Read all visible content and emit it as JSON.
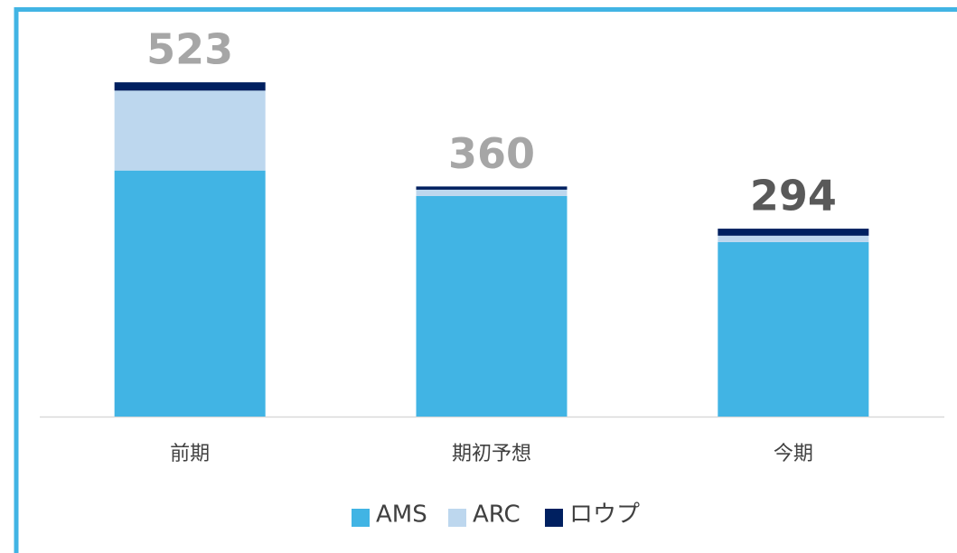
{
  "chart_data": {
    "type": "stacked_bar",
    "categories": [
      "前期",
      "期初予想",
      "今期"
    ],
    "series": [
      {
        "name": "AMS",
        "color": "#41b4e4",
        "values": [
          385,
          345,
          273
        ]
      },
      {
        "name": "ARC",
        "color": "#bdd7ee",
        "values": [
          125,
          10,
          10
        ]
      },
      {
        "name": "ロウプ",
        "color": "#002060",
        "values": [
          13,
          5,
          11
        ]
      }
    ],
    "totals": [
      523,
      360,
      294
    ],
    "total_colors": [
      "#a6a6a6",
      "#a6a6a6",
      "#595959"
    ],
    "ylim": [
      0,
      550
    ],
    "legend": "bottom"
  }
}
